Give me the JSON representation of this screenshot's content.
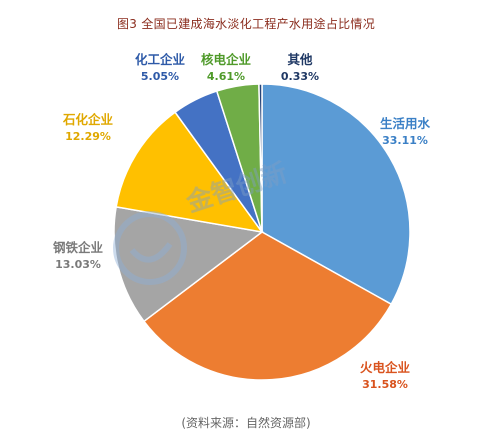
{
  "chart_data": {
    "type": "pie",
    "title": "图3 全国已建成海水淡化工程产水用途占比情况",
    "categories": [
      "生活用水",
      "火电企业",
      "钢铁企业",
      "石化企业",
      "化工企业",
      "核电企业",
      "其他"
    ],
    "values": [
      33.11,
      31.58,
      13.03,
      12.29,
      5.05,
      4.61,
      0.33
    ],
    "value_labels": [
      "33.11%",
      "31.58%",
      "13.03%",
      "12.29%",
      "5.05%",
      "4.61%",
      "0.33%"
    ],
    "colors": [
      "#5b9bd5",
      "#ed7d31",
      "#a5a5a5",
      "#ffc000",
      "#4472c4",
      "#70ad47",
      "#264478"
    ],
    "label_colors": [
      "#3b80c6",
      "#d9531e",
      "#7a7a7a",
      "#e0a800",
      "#2e5aa8",
      "#4f9a2a",
      "#1f3864"
    ],
    "legend": "none"
  },
  "source_note": "(资料来源：自然资源部)",
  "watermark": {
    "text": "金智创新",
    "logo_icon": "jinzhi-logo-icon"
  }
}
